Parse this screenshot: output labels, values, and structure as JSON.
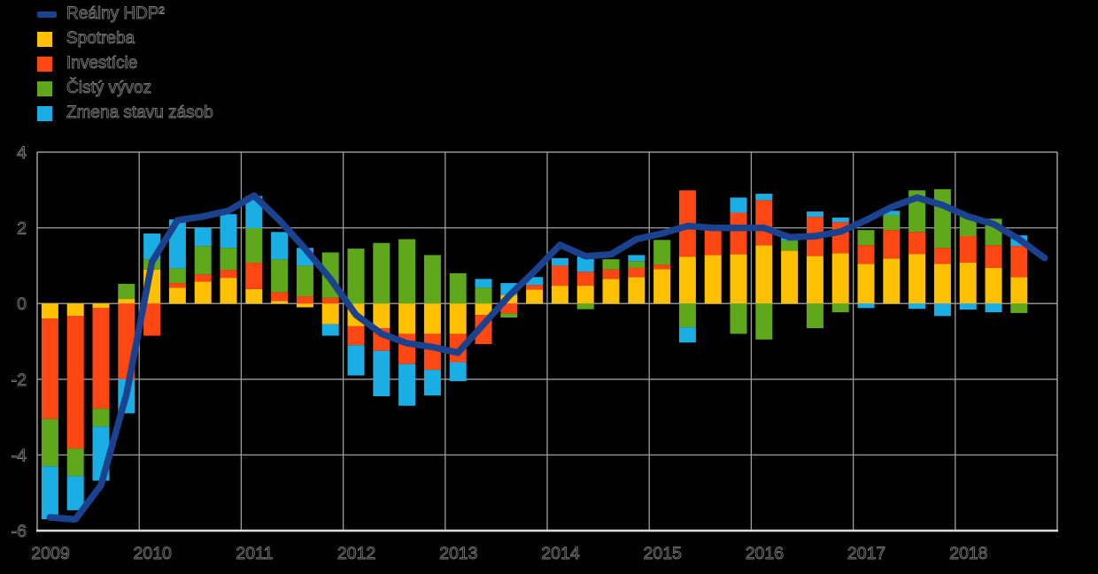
{
  "legend": {
    "items": [
      {
        "label": "Reálny HDP²",
        "color": "#1A428F",
        "type": "line"
      },
      {
        "label": "Spotreba",
        "color": "#FFC000",
        "type": "box"
      },
      {
        "label": "Investície",
        "color": "#FF4713",
        "type": "box"
      },
      {
        "label": "Čistý vývoz",
        "color": "#5FA81C",
        "type": "box"
      },
      {
        "label": "Zmena stavu zásob",
        "color": "#1BAEE4",
        "type": "box"
      }
    ]
  },
  "axes": {
    "y_ticks": [
      "4",
      "2",
      "0",
      "-2",
      "-4",
      "-6"
    ],
    "x_ticks": [
      "2009",
      "2010",
      "2011",
      "2012",
      "2013",
      "2014",
      "2015",
      "2016",
      "2017",
      "2018"
    ]
  },
  "chart_data": {
    "type": "bar",
    "subtype": "stacked-quarterly-bars-with-line",
    "ylim": [
      -6,
      4
    ],
    "grid": true,
    "legend_position": "top-left",
    "years": [
      "2009",
      "2010",
      "2011",
      "2012",
      "2013",
      "2014",
      "2015",
      "2016",
      "2017",
      "2018"
    ],
    "quarters_per_year": 4,
    "bar_quarters": 39,
    "series": [
      {
        "name": "Spotreba",
        "color": "#FFC000",
        "values": [
          -0.4,
          -0.33,
          -0.12,
          0.12,
          0.9,
          0.42,
          0.58,
          0.68,
          0.38,
          0.07,
          -0.1,
          -0.55,
          -0.6,
          -0.65,
          -0.8,
          -0.8,
          -0.8,
          -0.3,
          0.23,
          0.37,
          0.47,
          0.47,
          0.65,
          0.7,
          0.91,
          1.24,
          1.28,
          1.3,
          1.54,
          1.4,
          1.26,
          1.33,
          1.05,
          1.19,
          1.31,
          1.05,
          1.08,
          0.94,
          0.7
        ]
      },
      {
        "name": "Investície",
        "color": "#FF4713",
        "values": [
          -2.65,
          -3.5,
          -2.66,
          -2.0,
          -0.85,
          0.12,
          0.19,
          0.21,
          0.7,
          0.23,
          0.19,
          0.15,
          -0.5,
          -0.6,
          -0.8,
          -0.95,
          -0.75,
          -0.77,
          -0.26,
          0.12,
          0.53,
          0.37,
          0.25,
          0.24,
          0.12,
          1.75,
          0.66,
          1.1,
          1.19,
          0.0,
          1.03,
          0.82,
          0.49,
          0.75,
          0.58,
          0.42,
          0.7,
          0.6,
          0.82
        ]
      },
      {
        "name": "Čistý vývoz",
        "color": "#5FA81C",
        "values": [
          -1.25,
          -0.73,
          -0.47,
          0.4,
          0.27,
          0.39,
          0.75,
          0.58,
          0.91,
          0.87,
          0.81,
          1.2,
          1.45,
          1.6,
          1.7,
          1.28,
          0.8,
          0.42,
          -0.11,
          0.0,
          0.0,
          -0.15,
          0.27,
          0.18,
          0.65,
          -0.63,
          0.0,
          -0.8,
          -0.95,
          0.26,
          -0.65,
          -0.23,
          0.4,
          0.4,
          1.1,
          1.55,
          0.55,
          0.7,
          -0.25
        ]
      },
      {
        "name": "Zmena stavu zásob",
        "color": "#1BAEE4",
        "values": [
          -1.4,
          -0.9,
          -1.43,
          -0.9,
          0.68,
          1.29,
          0.49,
          0.89,
          0.85,
          0.72,
          0.47,
          -0.3,
          -0.8,
          -1.2,
          -1.1,
          -0.68,
          -0.5,
          0.23,
          0.31,
          0.21,
          0.2,
          0.4,
          0.0,
          0.16,
          0.0,
          -0.4,
          0.0,
          0.4,
          0.17,
          0.14,
          0.14,
          0.12,
          -0.12,
          0.11,
          -0.14,
          -0.33,
          -0.16,
          -0.23,
          0.28
        ]
      }
    ],
    "line": {
      "name": "Reálny HDP²",
      "color": "#1A428F",
      "values": [
        -5.65,
        -5.7,
        -4.8,
        -2.4,
        1.1,
        2.2,
        2.3,
        2.45,
        2.85,
        2.2,
        1.45,
        0.65,
        -0.3,
        -0.8,
        -1.05,
        -1.15,
        -1.3,
        -0.55,
        0.2,
        0.85,
        1.55,
        1.25,
        1.3,
        1.7,
        1.85,
        2.05,
        2.0,
        2.0,
        2.0,
        1.75,
        1.78,
        1.9,
        2.2,
        2.55,
        2.8,
        2.6,
        2.3,
        2.1,
        1.7,
        1.2
      ]
    }
  },
  "style_colors": {
    "background": "#000000",
    "gridline": "#9E9E9E",
    "axis_line": "#DDDDDD",
    "text_outline": "#7A7A7A"
  }
}
